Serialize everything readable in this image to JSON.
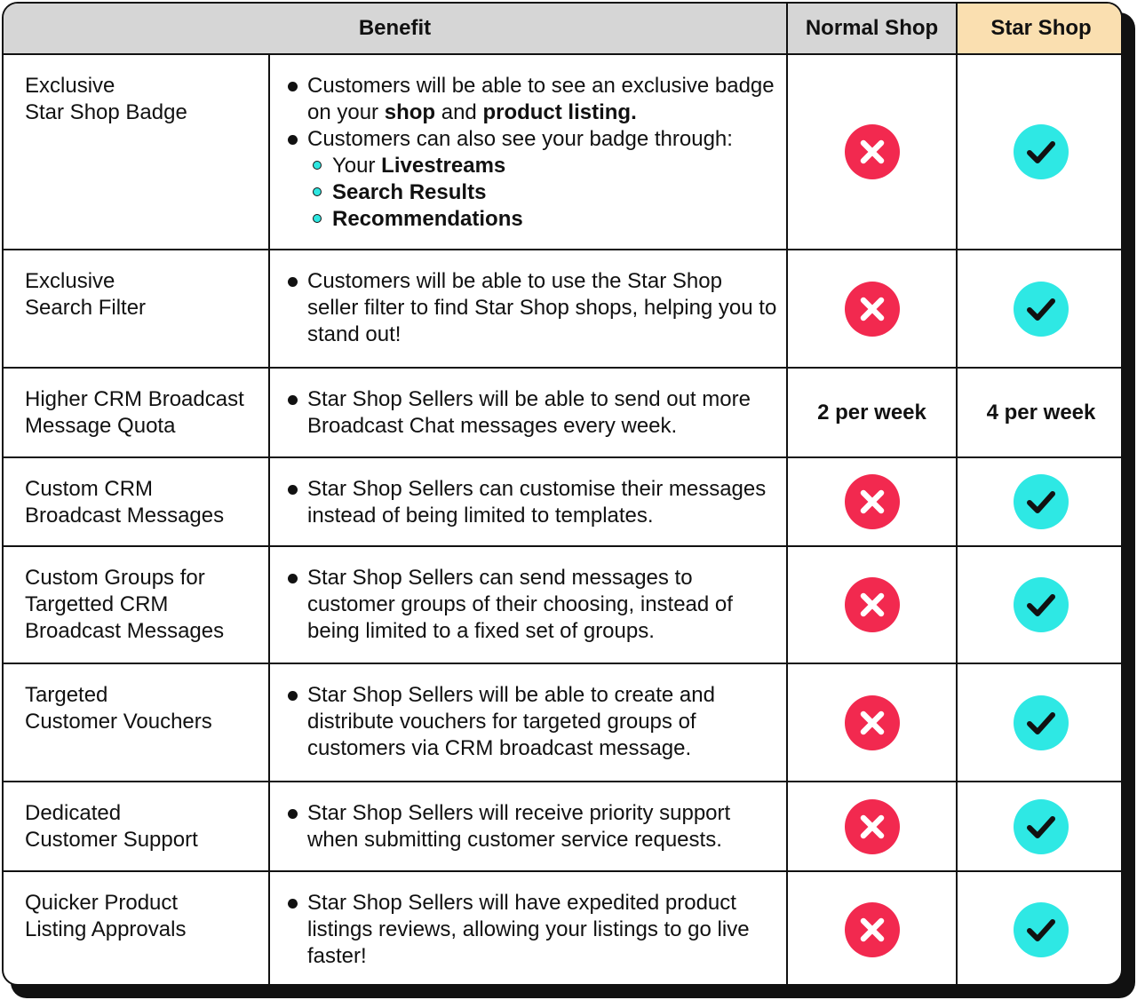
{
  "header": {
    "benefit": "Benefit",
    "normal": "Normal Shop",
    "star": "Star Shop"
  },
  "colors": {
    "cross": "#f2294f",
    "check": "#2ee8e4",
    "star_header": "#fadfb0",
    "header_bg": "#d6d6d6"
  },
  "rows": [
    {
      "name": [
        "Exclusive",
        "Star Shop Badge"
      ],
      "bullets": [
        [
          "Customers will be able to see an exclusive badge on your ",
          "shop",
          " and ",
          "product listing."
        ],
        [
          "Customers can also see your badge through:"
        ]
      ],
      "sub": [
        [
          "Your ",
          "Livestreams"
        ],
        [
          "",
          "Search Results"
        ],
        [
          "",
          "Recommendations"
        ]
      ],
      "normal": "cross-icon",
      "star": "check-icon"
    },
    {
      "name": [
        "Exclusive",
        "Search Filter"
      ],
      "bullets": [
        "Customers will be able to use the Star Shop seller filter to find Star Shop shops, helping you to stand out!"
      ],
      "normal": "cross-icon",
      "star": "check-icon"
    },
    {
      "name": [
        "Higher CRM Broadcast",
        "Message Quota"
      ],
      "bullets": [
        "Star Shop Sellers will be able to send out more Broadcast Chat messages every week."
      ],
      "normal_text": "2 per week",
      "star_text": "4 per week"
    },
    {
      "name": [
        "Custom CRM",
        "Broadcast Messages"
      ],
      "bullets": [
        "Star Shop Sellers can customise their messages instead of being limited to templates."
      ],
      "normal": "cross-icon",
      "star": "check-icon"
    },
    {
      "name": [
        "Custom Groups for",
        "Targetted CRM",
        "Broadcast Messages"
      ],
      "bullets": [
        "Star Shop Sellers can send messages to customer groups of their choosing, instead of being limited to a fixed set of groups."
      ],
      "normal": "cross-icon",
      "star": "check-icon"
    },
    {
      "name": [
        "Targeted",
        "Customer Vouchers"
      ],
      "bullets": [
        "Star Shop Sellers will be able to create and distribute vouchers for targeted groups of customers via CRM broadcast message."
      ],
      "normal": "cross-icon",
      "star": "check-icon"
    },
    {
      "name": [
        "Dedicated",
        "Customer Support"
      ],
      "bullets": [
        "Star Shop Sellers will receive priority support when submitting customer service requests."
      ],
      "normal": "cross-icon",
      "star": "check-icon"
    },
    {
      "name": [
        "Quicker Product",
        "Listing Approvals"
      ],
      "bullets": [
        "Star Shop Sellers will have expedited product listings reviews, allowing your listings to go live faster!"
      ],
      "normal": "cross-icon",
      "star": "check-icon"
    }
  ]
}
